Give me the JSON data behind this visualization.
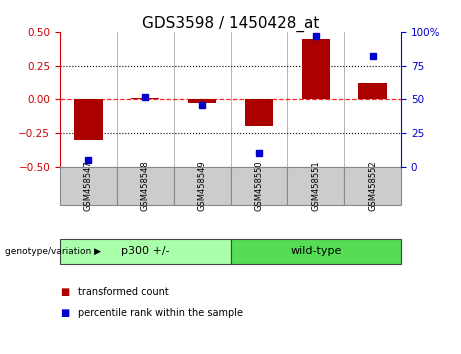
{
  "title": "GDS3598 / 1450428_at",
  "samples": [
    "GSM458547",
    "GSM458548",
    "GSM458549",
    "GSM458550",
    "GSM458551",
    "GSM458552"
  ],
  "red_bars": [
    -0.3,
    0.01,
    -0.03,
    -0.2,
    0.45,
    0.12
  ],
  "blue_dots": [
    5,
    52,
    46,
    10,
    97,
    82
  ],
  "groups": [
    {
      "label": "p300 +/-",
      "start": 0,
      "end": 3,
      "color": "#AAFFAA"
    },
    {
      "label": "wild-type",
      "start": 3,
      "end": 6,
      "color": "#55DD55"
    }
  ],
  "ylim_left": [
    -0.5,
    0.5
  ],
  "ylim_right": [
    0,
    100
  ],
  "yticks_left": [
    -0.5,
    -0.25,
    0,
    0.25,
    0.5
  ],
  "yticks_right": [
    0,
    25,
    50,
    75,
    100
  ],
  "hlines_dotted": [
    0.25,
    -0.25
  ],
  "hline_zero": 0,
  "bar_color": "#AA0000",
  "dot_color": "#0000CC",
  "bg_color": "#FFFFFF",
  "left_axis_color": "#CC0000",
  "right_axis_color": "#0000CC",
  "title_fontsize": 11,
  "tick_fontsize": 7.5,
  "bar_width": 0.5,
  "genotype_label": "genotype/variation",
  "sample_bg_color": "#CCCCCC",
  "sample_border_color": "#888888",
  "legend_labels": [
    "transformed count",
    "percentile rank within the sample"
  ]
}
